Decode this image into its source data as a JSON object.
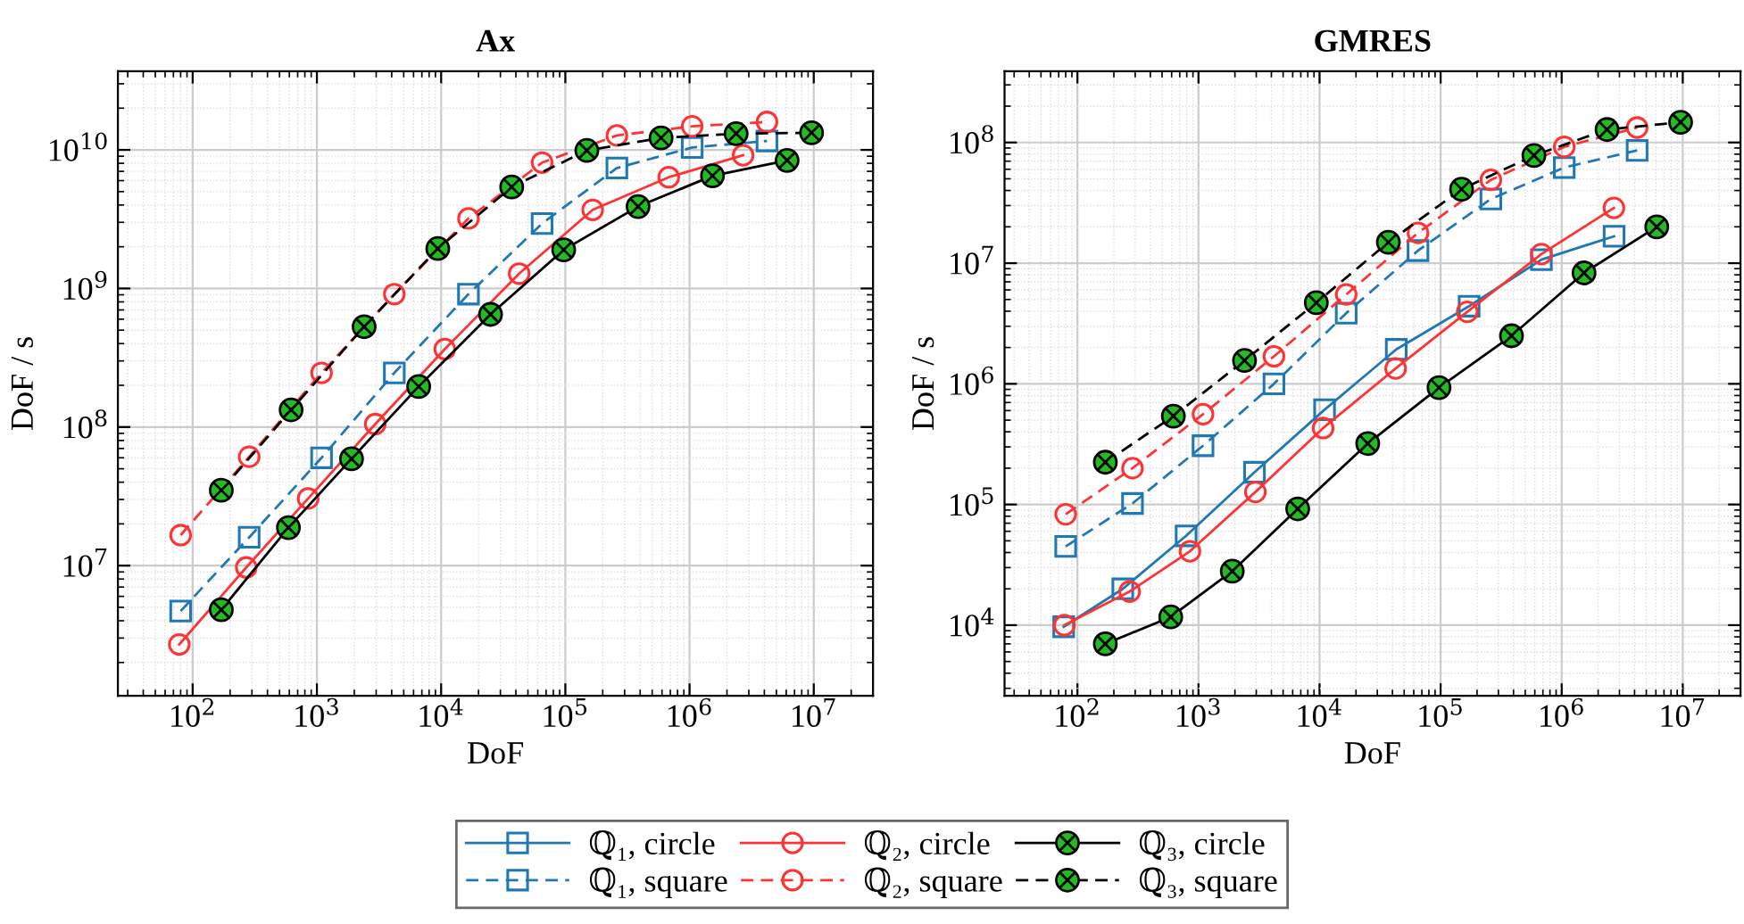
{
  "chart_data": [
    {
      "type": "line",
      "title": "Ax",
      "xlabel": "DoF",
      "ylabel": "DoF / s",
      "log": "xy",
      "grid": true,
      "legend": false,
      "xlim": [
        25,
        30000000
      ],
      "ylim": [
        1150000,
        37000000000
      ],
      "xticks": [
        {
          "value": 100,
          "label": "10$^{2}$"
        },
        {
          "value": 1000,
          "label": "10$^{3}$"
        },
        {
          "value": 10000,
          "label": "10$^{4}$"
        },
        {
          "value": 100000,
          "label": "10$^{5}$"
        },
        {
          "value": 1000000,
          "label": "10$^{6}$"
        },
        {
          "value": 10000000,
          "label": "10$^{7}$"
        }
      ],
      "yticks": [
        {
          "value": 10000000,
          "label": "10$^{7}$"
        },
        {
          "value": 100000000,
          "label": "10$^{8}$"
        },
        {
          "value": 1000000000,
          "label": "10$^{9}$"
        },
        {
          "value": 10000000000,
          "label": "10$^{10}$"
        }
      ],
      "series": [
        {
          "color": "#1f78b4",
          "marker": "square",
          "line_style": "dashed",
          "x": [
            80,
            285,
            1090,
            4200,
            16600,
            65000,
            260000,
            1050000,
            4200000
          ],
          "values": [
            4700000,
            16000000,
            60000000,
            246000000,
            910000000,
            2940000000,
            7400000000,
            10400000000,
            11600000000
          ]
        },
        {
          "color": "#ff3333",
          "marker": "circle",
          "line_style": "solid",
          "x": [
            78,
            270,
            850,
            2950,
            10700,
            42500,
            166000,
            680000,
            2700000
          ],
          "values": [
            2700000,
            9700000,
            30500000,
            105000000,
            365000000,
            1280000000,
            3690000000,
            6350000000,
            9150000000
          ]
        },
        {
          "color": "#ff3333",
          "marker": "circle",
          "line_style": "dashed",
          "x": [
            80,
            285,
            1090,
            4200,
            16600,
            65000,
            260000,
            1050000,
            4200000
          ],
          "values": [
            16600000,
            61000000,
            246000000,
            910000000,
            3200000000,
            8100000000,
            12700000000,
            14800000000,
            15900000000
          ]
        },
        {
          "color": "#000000",
          "marker": "cross",
          "line_style": "solid",
          "x": [
            170,
            590,
            1900,
            6600,
            25000,
            97000,
            385000,
            1530000,
            6100000
          ],
          "values": [
            4800000,
            18800000,
            59000000,
            196000000,
            650000000,
            1900000000,
            3900000000,
            6500000000,
            8400000000
          ]
        },
        {
          "color": "#000000",
          "marker": "cross",
          "line_style": "dashed",
          "x": [
            170,
            620,
            2400,
            9400,
            37000,
            149000,
            590000,
            2370000,
            9600000
          ],
          "values": [
            35000000,
            133000000,
            530000000,
            1940000000,
            5400000000,
            9900000000,
            12200000000,
            13100000000,
            13300000000
          ]
        }
      ]
    },
    {
      "type": "line",
      "title": "GMRES",
      "xlabel": "DoF",
      "ylabel": "DoF / s",
      "log": "xy",
      "grid": true,
      "legend": "bottom",
      "xlim": [
        25,
        30000000
      ],
      "ylim": [
        2600,
        390000000
      ],
      "xticks": [
        {
          "value": 100,
          "label": "10$^{2}$"
        },
        {
          "value": 1000,
          "label": "10$^{3}$"
        },
        {
          "value": 10000,
          "label": "10$^{4}$"
        },
        {
          "value": 100000,
          "label": "10$^{5}$"
        },
        {
          "value": 1000000,
          "label": "10$^{6}$"
        },
        {
          "value": 10000000,
          "label": "10$^{7}$"
        }
      ],
      "yticks": [
        {
          "value": 10000,
          "label": "10$^{4}$"
        },
        {
          "value": 100000,
          "label": "10$^{5}$"
        },
        {
          "value": 1000000,
          "label": "10$^{6}$"
        },
        {
          "value": 10000000,
          "label": "10$^{7}$"
        },
        {
          "value": 100000000,
          "label": "10$^{8}$"
        }
      ],
      "series": [
        {
          "name": "ℚ₁, circle",
          "color": "#1f78b4",
          "marker": "square",
          "line_style": "solid",
          "x": [
            77,
            237,
            790,
            2900,
            11000,
            43000,
            172000,
            680000,
            2710000
          ],
          "values": [
            9700,
            20000,
            55000,
            185000,
            610000,
            1930000,
            4400000,
            10700000,
            16700000
          ]
        },
        {
          "name": "ℚ₁, square",
          "color": "#1f78b4",
          "marker": "square",
          "line_style": "dashed",
          "x": [
            80,
            285,
            1090,
            4200,
            16600,
            65000,
            260000,
            1050000,
            4200000
          ],
          "values": [
            45000,
            102000,
            307000,
            1000000,
            3850000,
            12700000,
            34000000,
            62000000,
            86000000
          ]
        },
        {
          "name": "ℚ₂, circle",
          "color": "#ff3333",
          "marker": "circle",
          "line_style": "solid",
          "x": [
            78,
            270,
            850,
            2950,
            10700,
            42500,
            166000,
            680000,
            2700000
          ],
          "values": [
            10000,
            19000,
            41000,
            127000,
            430000,
            1340000,
            3950000,
            11900000,
            28700000
          ]
        },
        {
          "name": "ℚ₂, square",
          "color": "#ff3333",
          "marker": "circle",
          "line_style": "dashed",
          "x": [
            80,
            285,
            1090,
            4200,
            16600,
            65000,
            260000,
            1050000,
            4200000
          ],
          "values": [
            83000,
            200000,
            560000,
            1690000,
            5500000,
            17800000,
            49000000,
            92000000,
            133000000
          ]
        },
        {
          "name": "ℚ₃, circle",
          "color": "#000000",
          "marker": "cross",
          "line_style": "solid",
          "x": [
            170,
            590,
            1900,
            6600,
            25000,
            97000,
            385000,
            1530000,
            6100000
          ],
          "values": [
            7000,
            11700,
            28000,
            92000,
            320000,
            930000,
            2500000,
            8300000,
            20000000
          ]
        },
        {
          "name": "ℚ₃, square",
          "color": "#000000",
          "marker": "cross",
          "line_style": "dashed",
          "x": [
            170,
            620,
            2400,
            9400,
            37000,
            149000,
            590000,
            2370000,
            9600000
          ],
          "values": [
            224000,
            540000,
            1560000,
            4700000,
            14900000,
            41000000,
            78000000,
            128000000,
            147000000
          ]
        }
      ]
    }
  ]
}
